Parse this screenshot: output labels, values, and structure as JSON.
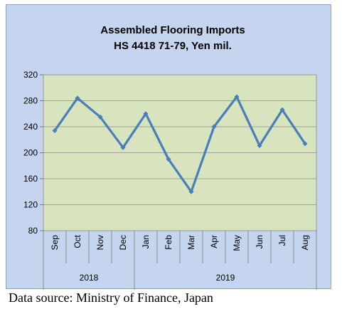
{
  "chart_data": {
    "type": "line",
    "title": [
      "Assembled Flooring Imports",
      "HS 4418 71-79, Yen mil."
    ],
    "categories": [
      "Sep",
      "Oct",
      "Nov",
      "Dec",
      "Jan",
      "Feb",
      "Mar",
      "Apr",
      "May",
      "Jun",
      "Jul",
      "Aug"
    ],
    "groups": [
      {
        "label": "2018",
        "span": 4
      },
      {
        "label": "2019",
        "span": 8
      }
    ],
    "values": [
      234,
      284,
      255,
      208,
      260,
      190,
      140,
      240,
      286,
      211,
      266,
      214
    ],
    "ylim": [
      80,
      320
    ],
    "yticks": [
      80,
      120,
      160,
      200,
      240,
      280,
      320
    ],
    "grid": true,
    "colors": {
      "line": "#4a7ebb",
      "plot_bg": "#d7e4bd",
      "frame_bg": "#c5d5ef"
    }
  },
  "source_note": "Data source: Ministry of Finance, Japan"
}
